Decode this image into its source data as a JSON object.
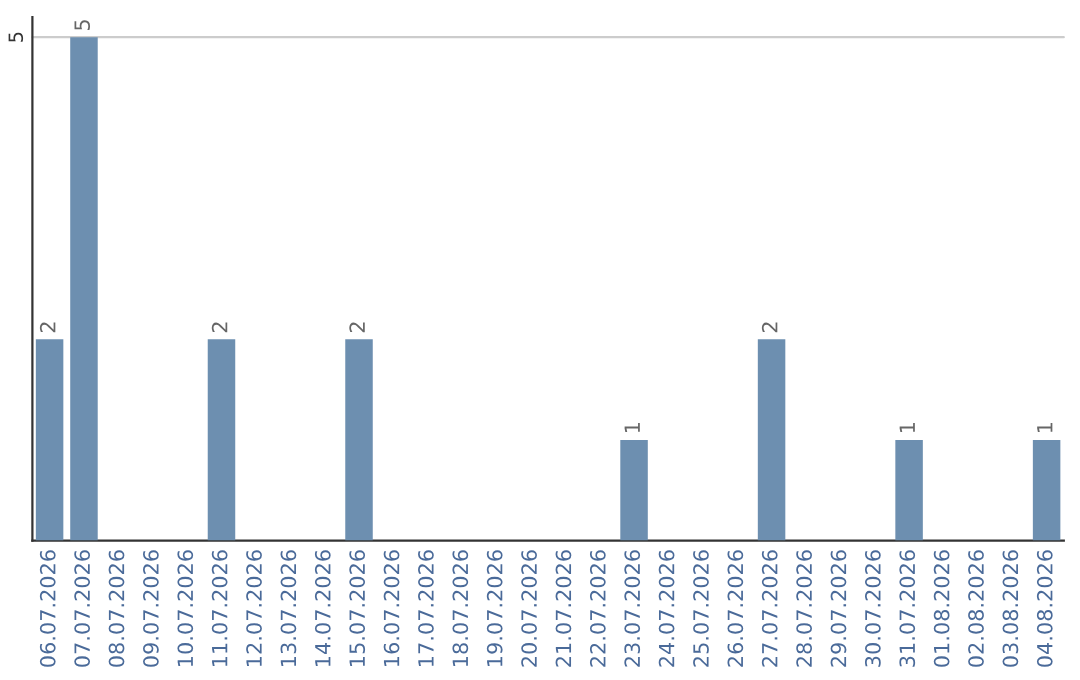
{
  "chart_data": {
    "type": "bar",
    "categories": [
      "06.07.2026",
      "07.07.2026",
      "08.07.2026",
      "09.07.2026",
      "10.07.2026",
      "11.07.2026",
      "12.07.2026",
      "13.07.2026",
      "14.07.2026",
      "15.07.2026",
      "16.07.2026",
      "17.07.2026",
      "18.07.2026",
      "19.07.2026",
      "20.07.2026",
      "21.07.2026",
      "22.07.2026",
      "23.07.2026",
      "24.07.2026",
      "25.07.2026",
      "26.07.2026",
      "27.07.2026",
      "28.07.2026",
      "29.07.2026",
      "30.07.2026",
      "31.07.2026",
      "01.08.2026",
      "02.08.2026",
      "03.08.2026",
      "04.08.2026"
    ],
    "values": [
      2,
      5,
      0,
      0,
      0,
      2,
      0,
      0,
      0,
      2,
      0,
      0,
      0,
      0,
      0,
      0,
      0,
      1,
      0,
      0,
      0,
      2,
      0,
      0,
      0,
      1,
      0,
      0,
      0,
      1
    ],
    "value_labels": [
      "2",
      "5",
      null,
      null,
      null,
      "2",
      null,
      null,
      null,
      "2",
      null,
      null,
      null,
      null,
      null,
      null,
      null,
      "1",
      null,
      null,
      null,
      "2",
      null,
      null,
      null,
      "1",
      null,
      null,
      null,
      "1"
    ],
    "color": "#6d8fb0",
    "ylim": [
      0,
      5.2
    ],
    "yticks": [
      5
    ],
    "grid": "y",
    "legend": false
  }
}
